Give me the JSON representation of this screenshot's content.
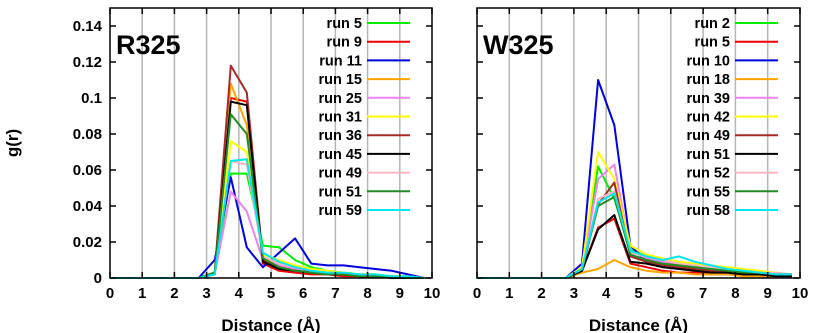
{
  "chart_data": [
    {
      "type": "line",
      "panel_label": "R325",
      "xlabel": "Distance (Å)",
      "ylabel": "g(r)",
      "xlim": [
        0,
        10
      ],
      "ylim": [
        0,
        0.15
      ],
      "xticks": [
        "0",
        "1",
        "2",
        "3",
        "4",
        "5",
        "6",
        "7",
        "8",
        "9",
        "10"
      ],
      "yticks": [
        "0",
        "0.02",
        "0.04",
        "0.06",
        "0.08",
        "0.1",
        "0.12",
        "0.14"
      ],
      "grid": "vertical",
      "legend_position": "top-right",
      "x": [
        0,
        2.75,
        3.25,
        3.75,
        4.25,
        4.75,
        5.25,
        5.75,
        6.25,
        6.75,
        7.25,
        7.75,
        8.25,
        8.75,
        9.25,
        9.75
      ],
      "series": [
        {
          "name": "run 5",
          "color": "#00ee00",
          "values": [
            0,
            0,
            0.003,
            0.058,
            0.058,
            0.018,
            0.017,
            0.01,
            0.006,
            0.004,
            0.003,
            0.002,
            0.002,
            0.001,
            0.001,
            0
          ]
        },
        {
          "name": "run 9",
          "color": "#ee0000",
          "values": [
            0,
            0,
            0.002,
            0.1,
            0.098,
            0.008,
            0.004,
            0.003,
            0.002,
            0.002,
            0.001,
            0.001,
            0.001,
            0,
            0,
            0
          ]
        },
        {
          "name": "run 11",
          "color": "#0000dd",
          "values": [
            0,
            0,
            0.01,
            0.056,
            0.017,
            0.006,
            0.014,
            0.022,
            0.008,
            0.007,
            0.007,
            0.006,
            0.005,
            0.004,
            0.002,
            0
          ]
        },
        {
          "name": "run 15",
          "color": "#ffa500",
          "values": [
            0,
            0,
            0.002,
            0.108,
            0.085,
            0.012,
            0.006,
            0.004,
            0.003,
            0.002,
            0.002,
            0.001,
            0.001,
            0.001,
            0,
            0
          ]
        },
        {
          "name": "run 25",
          "color": "#ee82ee",
          "values": [
            0,
            0,
            0.002,
            0.048,
            0.037,
            0.01,
            0.007,
            0.005,
            0.004,
            0.003,
            0.002,
            0.002,
            0.001,
            0.001,
            0,
            0
          ]
        },
        {
          "name": "run 31",
          "color": "#ffff00",
          "values": [
            0,
            0,
            0.002,
            0.076,
            0.07,
            0.013,
            0.01,
            0.007,
            0.005,
            0.004,
            0.003,
            0.002,
            0.002,
            0.001,
            0.001,
            0
          ]
        },
        {
          "name": "run 36",
          "color": "#a52a2a",
          "values": [
            0,
            0,
            0.003,
            0.118,
            0.103,
            0.01,
            0.006,
            0.004,
            0.003,
            0.002,
            0.002,
            0.001,
            0.001,
            0.001,
            0,
            0
          ]
        },
        {
          "name": "run 45",
          "color": "#000000",
          "values": [
            0,
            0,
            0.002,
            0.098,
            0.096,
            0.009,
            0.005,
            0.004,
            0.003,
            0.002,
            0.002,
            0.001,
            0.001,
            0,
            0,
            0
          ]
        },
        {
          "name": "run 49",
          "color": "#ffb6c1",
          "values": [
            0,
            0,
            0.002,
            0.065,
            0.063,
            0.012,
            0.008,
            0.006,
            0.004,
            0.003,
            0.002,
            0.002,
            0.001,
            0.001,
            0,
            0
          ]
        },
        {
          "name": "run 51",
          "color": "#228b22",
          "values": [
            0,
            0,
            0.003,
            0.091,
            0.08,
            0.011,
            0.006,
            0.004,
            0.003,
            0.002,
            0.002,
            0.001,
            0.001,
            0.001,
            0,
            0
          ]
        },
        {
          "name": "run 59",
          "color": "#00e5ee",
          "values": [
            0,
            0,
            0.002,
            0.065,
            0.066,
            0.014,
            0.009,
            0.006,
            0.004,
            0.003,
            0.003,
            0.002,
            0.002,
            0.001,
            0.001,
            0
          ]
        }
      ]
    },
    {
      "type": "line",
      "panel_label": "W325",
      "xlabel": "Distance (Å)",
      "ylabel": "",
      "xlim": [
        0,
        10
      ],
      "ylim": [
        0,
        0.15
      ],
      "xticks": [
        "0",
        "1",
        "2",
        "3",
        "4",
        "5",
        "6",
        "7",
        "8",
        "9",
        "10"
      ],
      "yticks": [],
      "grid": "vertical",
      "legend_position": "top-right",
      "x": [
        0,
        2.75,
        3.25,
        3.75,
        4.25,
        4.75,
        5.25,
        5.75,
        6.25,
        6.75,
        7.25,
        7.75,
        8.25,
        8.75,
        9.25,
        9.75
      ],
      "series": [
        {
          "name": "run 2",
          "color": "#00ee00",
          "values": [
            0,
            0,
            0.005,
            0.062,
            0.044,
            0.016,
            0.012,
            0.01,
            0.008,
            0.006,
            0.005,
            0.004,
            0.003,
            0.003,
            0.002,
            0.002
          ]
        },
        {
          "name": "run 5",
          "color": "#ee0000",
          "values": [
            0,
            0,
            0.004,
            0.028,
            0.033,
            0.008,
            0.006,
            0.004,
            0.003,
            0.003,
            0.002,
            0.002,
            0.002,
            0.001,
            0.001,
            0.001
          ]
        },
        {
          "name": "run 10",
          "color": "#0000dd",
          "values": [
            0,
            0,
            0.008,
            0.11,
            0.085,
            0.018,
            0.009,
            0.007,
            0.006,
            0.005,
            0.004,
            0.004,
            0.003,
            0.003,
            0.002,
            0.002
          ]
        },
        {
          "name": "run 18",
          "color": "#ffa500",
          "values": [
            0,
            0,
            0.003,
            0.005,
            0.01,
            0.006,
            0.004,
            0.003,
            0.003,
            0.002,
            0.002,
            0.002,
            0.001,
            0.001,
            0.001,
            0.001
          ]
        },
        {
          "name": "run 39",
          "color": "#ee82ee",
          "values": [
            0,
            0,
            0.005,
            0.055,
            0.063,
            0.015,
            0.011,
            0.009,
            0.007,
            0.006,
            0.005,
            0.004,
            0.003,
            0.003,
            0.002,
            0.002
          ]
        },
        {
          "name": "run 42",
          "color": "#ffff00",
          "values": [
            0,
            0,
            0.006,
            0.07,
            0.055,
            0.018,
            0.013,
            0.011,
            0.009,
            0.008,
            0.007,
            0.006,
            0.005,
            0.004,
            0.003,
            0.002
          ]
        },
        {
          "name": "run 49",
          "color": "#a52a2a",
          "values": [
            0,
            0,
            0.004,
            0.041,
            0.053,
            0.012,
            0.009,
            0.007,
            0.006,
            0.005,
            0.004,
            0.003,
            0.003,
            0.002,
            0.002,
            0.001
          ]
        },
        {
          "name": "run 51",
          "color": "#000000",
          "values": [
            0,
            0,
            0.004,
            0.027,
            0.035,
            0.009,
            0.008,
            0.006,
            0.005,
            0.004,
            0.003,
            0.003,
            0.002,
            0.002,
            0.001,
            0.001
          ]
        },
        {
          "name": "run 52",
          "color": "#ffb6c1",
          "values": [
            0,
            0,
            0.005,
            0.044,
            0.048,
            0.014,
            0.012,
            0.01,
            0.008,
            0.007,
            0.006,
            0.005,
            0.004,
            0.003,
            0.003,
            0.002
          ]
        },
        {
          "name": "run 55",
          "color": "#228b22",
          "values": [
            0,
            0,
            0.005,
            0.04,
            0.045,
            0.013,
            0.01,
            0.008,
            0.007,
            0.006,
            0.005,
            0.004,
            0.003,
            0.003,
            0.002,
            0.002
          ]
        },
        {
          "name": "run 58",
          "color": "#00e5ee",
          "values": [
            0,
            0,
            0.005,
            0.042,
            0.047,
            0.015,
            0.012,
            0.01,
            0.012,
            0.009,
            0.007,
            0.005,
            0.004,
            0.003,
            0.002,
            0.002
          ]
        }
      ]
    }
  ]
}
